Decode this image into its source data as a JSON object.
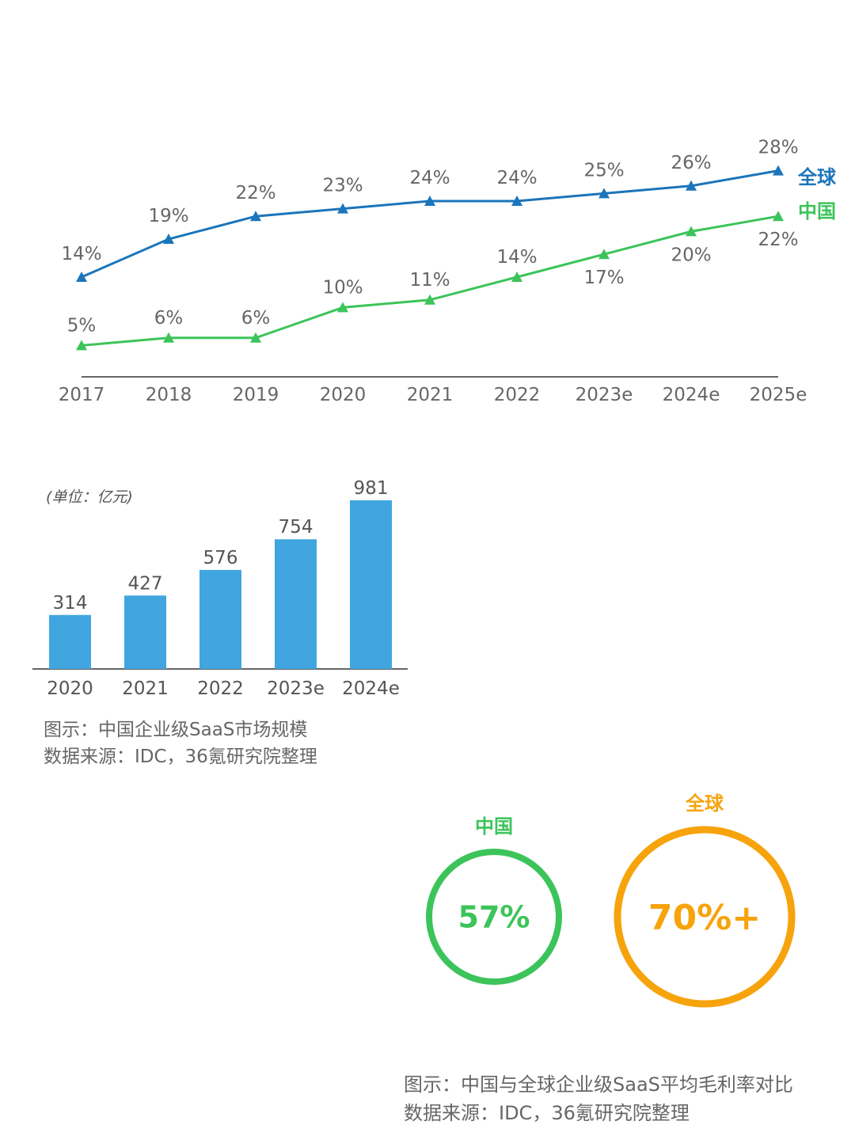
{
  "colors": {
    "global": "#1b75bb",
    "china": "#3cc45a",
    "bar": "#41a5df",
    "donut_china": "#3cc45a",
    "donut_global": "#f7a30c",
    "axis": "#333333",
    "label": "#666666"
  },
  "chart_data": [
    {
      "type": "line",
      "x": [
        "2017",
        "2018",
        "2019",
        "2020",
        "2021",
        "2022",
        "2023e",
        "2024e",
        "2025e"
      ],
      "series": [
        {
          "name": "全球",
          "values": [
            14,
            19,
            22,
            23,
            24,
            24,
            25,
            26,
            28
          ],
          "labels": [
            "14%",
            "19%",
            "22%",
            "23%",
            "24%",
            "24%",
            "25%",
            "26%",
            "28%"
          ]
        },
        {
          "name": "中国",
          "values": [
            5,
            6,
            6,
            10,
            11,
            14,
            17,
            20,
            22
          ],
          "labels": [
            "5%",
            "6%",
            "6%",
            "10%",
            "11%",
            "14%",
            "17%",
            "20%",
            "22%"
          ]
        }
      ],
      "marker": "triangle",
      "ylim": [
        0,
        30
      ],
      "grid": false,
      "legend": "right, at line ends"
    },
    {
      "type": "bar",
      "unit_note": "(单位：亿元)",
      "categories": [
        "2020",
        "2021",
        "2022",
        "2023e",
        "2024e"
      ],
      "values": [
        314,
        427,
        576,
        754,
        981
      ],
      "labels": [
        "314",
        "427",
        "576",
        "754",
        "981"
      ],
      "ylim": [
        0,
        1000
      ],
      "grid": false
    },
    {
      "type": "pie",
      "items": [
        {
          "name": "中国",
          "value": 57,
          "label": "57%"
        },
        {
          "name": "全球",
          "value": 70,
          "label": "70%+"
        }
      ]
    }
  ],
  "captions": {
    "bar": {
      "line1": "图示：中国企业级SaaS市场规模",
      "line2": "数据来源：IDC，36氪研究院整理"
    },
    "donut": {
      "line1": "图示：中国与全球企业级SaaS平均毛利率对比",
      "line2": "数据来源：IDC，36氪研究院整理"
    }
  }
}
